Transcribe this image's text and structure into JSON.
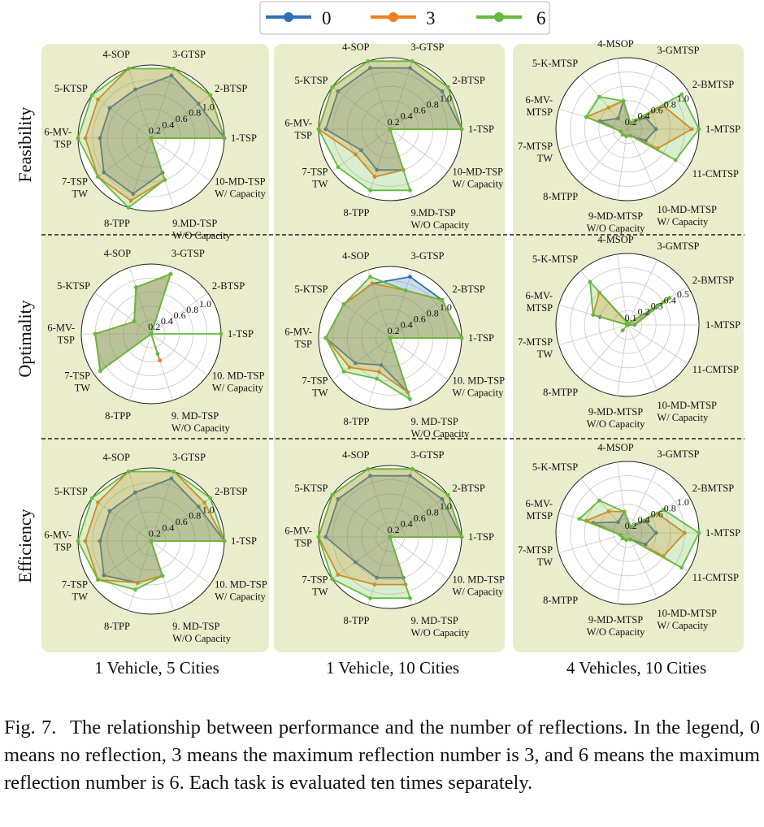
{
  "legend": {
    "colors": {
      "0": "#2f6fb6",
      "3": "#f07f1f",
      "6": "#66bb3c"
    }
  },
  "panel_background": "#eaedcb",
  "columns": [
    "1 Vehicle, 5 Cities",
    "1 Vehicle, 10 Cities",
    "4 Vehicles, 10 Cities"
  ],
  "rows": [
    "Feasibility",
    "Optimality",
    "Efficiency"
  ],
  "caption": {
    "label": "Fig. 7.",
    "text": "The relationship between performance and the number of reflections. In the legend, 0 means no reflection, 3 means the maximum reflection number is 3, and 6 means the maximum reflection number is 6. Each task is evaluated ten times separately."
  },
  "chart_data": [
    {
      "type": "radar",
      "row": "Feasibility",
      "column": "1 Vehicle, 5 Cities",
      "axes": [
        "1-TSP",
        "2-BTSP",
        "3-GTSP",
        "4-SOP",
        "5-KTSP",
        "6-MV-\nTSP",
        "7-TSP\nTW",
        "8-TPP",
        "9.MD-TSP\nW/O Capacity",
        "10-MD-TSP\nW/ Capacity"
      ],
      "rlim": [
        0,
        1.0
      ],
      "ticks": [
        "0.2",
        "0.4",
        "0.6",
        "0.8",
        "1.0"
      ],
      "series": [
        {
          "name": "0",
          "values": [
            1.0,
            0.8,
            0.9,
            0.7,
            0.7,
            0.7,
            0.8,
            0.8,
            0.5,
            0.0
          ]
        },
        {
          "name": "3",
          "values": [
            1.0,
            1.0,
            1.0,
            1.0,
            0.9,
            0.9,
            0.9,
            0.9,
            0.6,
            0.0
          ]
        },
        {
          "name": "6",
          "values": [
            1.0,
            1.0,
            1.0,
            1.0,
            1.0,
            1.0,
            0.9,
            1.0,
            0.6,
            0.0
          ]
        }
      ]
    },
    {
      "type": "radar",
      "row": "Feasibility",
      "column": "1 Vehicle, 10 Cities",
      "axes": [
        "1-TSP",
        "2-BTSP",
        "3-GTSP",
        "4-SOP",
        "5-KTSP",
        "6-MV-\nTSP",
        "7-TSP\nTW",
        "8-TPP",
        "9.MD-TSP\nW/O Capacity",
        "10-MD-TSP\nW/ Capacity"
      ],
      "rlim": [
        0,
        1.0
      ],
      "ticks": [
        "0.2",
        "0.4",
        "0.6",
        "0.8",
        "1.0"
      ],
      "series": [
        {
          "name": "0",
          "values": [
            1.0,
            0.9,
            0.9,
            0.9,
            0.9,
            0.9,
            0.5,
            0.6,
            0.6,
            0.0
          ]
        },
        {
          "name": "3",
          "values": [
            1.0,
            1.0,
            1.0,
            1.0,
            1.0,
            1.0,
            0.6,
            0.7,
            0.6,
            0.0
          ]
        },
        {
          "name": "6",
          "values": [
            1.0,
            1.0,
            1.0,
            1.0,
            1.0,
            1.0,
            0.9,
            0.9,
            0.9,
            0.0
          ]
        }
      ]
    },
    {
      "type": "radar",
      "row": "Feasibility",
      "column": "4 Vehicles, 10 Cities",
      "axes": [
        "1-MTSP",
        "2-BMTSP",
        "3-GMTSP",
        "4-MSOP",
        "5-K-MTSP",
        "6-MV-\nMTSP",
        "7-MTSP\nTW",
        "8-MTPP",
        "9-MD-MTSP\nW/O Capacity",
        "10-MD-MTSP\nW/ Capacity",
        "11-CMTSP"
      ],
      "rlim": [
        0,
        1.0
      ],
      "ticks": [
        "0.2",
        "0.4",
        "0.6",
        "0.8",
        "1.0"
      ],
      "series": [
        {
          "name": "0",
          "values": [
            0.4,
            0.3,
            0.1,
            0.4,
            0.2,
            0.4,
            0.1,
            0.1,
            0.1,
            0.1,
            0.3
          ]
        },
        {
          "name": "3",
          "values": [
            0.9,
            0.6,
            0.1,
            0.4,
            0.4,
            0.6,
            0.1,
            0.1,
            0.1,
            0.1,
            0.5
          ]
        },
        {
          "name": "6",
          "values": [
            1.0,
            0.9,
            0.1,
            0.4,
            0.6,
            0.6,
            0.1,
            0.1,
            0.1,
            0.1,
            0.8
          ]
        }
      ]
    },
    {
      "type": "radar",
      "row": "Optimality",
      "column": "1 Vehicle, 5 Cities",
      "axes": [
        "1-TSP",
        "2-BTSP",
        "3-GTSP",
        "4-SOP",
        "5-KTSP",
        "6-MV-\nTSP",
        "7-TSP\nTW",
        "8-TPP",
        "9. MD-TSP\nW/O Capacity",
        "10. MD-TSP\nW/ Capacity"
      ],
      "rlim": [
        0,
        1.0
      ],
      "ticks": [
        "0.2",
        "0.4",
        "0.6",
        "0.8",
        "1.0"
      ],
      "series": [
        {
          "name": "0",
          "values": [
            0.0,
            0.0,
            0.9,
            0.7,
            0.3,
            0.8,
            0.9,
            0.0,
            0.4,
            0.0
          ]
        },
        {
          "name": "3",
          "values": [
            0.0,
            0.0,
            0.9,
            0.7,
            0.3,
            0.8,
            0.9,
            0.0,
            0.4,
            0.0
          ]
        },
        {
          "name": "6",
          "values": [
            1.0,
            0.0,
            0.9,
            0.7,
            0.3,
            0.8,
            0.9,
            0.0,
            0.3,
            0.0
          ]
        }
      ]
    },
    {
      "type": "radar",
      "row": "Optimality",
      "column": "1 Vehicle, 10 Cities",
      "axes": [
        "1-TSP",
        "2-BTSP",
        "3-GTSP",
        "4-SOP",
        "5-KTSP",
        "6-MV-\nTSP",
        "7-TSP\nTW",
        "8-TPP",
        "9. MD-TSP\nW/O Capacity",
        "10. MD-TSP\nW/ Capacity"
      ],
      "rlim": [
        0,
        1.0
      ],
      "ticks": [
        "0.2",
        "0.4",
        "0.6",
        "0.8",
        "1.0"
      ],
      "series": [
        {
          "name": "0",
          "values": [
            1.0,
            0.9,
            0.9,
            0.8,
            0.8,
            0.9,
            0.6,
            0.4,
            0.8,
            0.0
          ]
        },
        {
          "name": "3",
          "values": [
            1.0,
            0.9,
            0.7,
            0.8,
            0.8,
            0.9,
            0.7,
            0.5,
            0.8,
            0.0
          ]
        },
        {
          "name": "6",
          "values": [
            1.0,
            0.9,
            0.7,
            0.9,
            0.8,
            0.9,
            0.8,
            0.6,
            0.9,
            0.0
          ]
        }
      ]
    },
    {
      "type": "radar",
      "row": "Optimality",
      "column": "4 Vehicles, 10 Cities",
      "axes": [
        "1-MTSP",
        "2-BMTSP",
        "3-GMTSP",
        "4-MSOP",
        "5-K-MTSP",
        "6-MV-\nMTSP",
        "7-MTSP\nTW",
        "8-MTPP",
        "9-MD-MTSP\nW/O Capacity",
        "10-MD-MTSP\nW/ Capacity",
        "11-CMTSP"
      ],
      "rlim": [
        0,
        0.5
      ],
      "ticks": [
        "0.1",
        "0.2",
        "0.3",
        "0.4",
        "0.5"
      ],
      "series": [
        {
          "name": "0",
          "values": [
            0.05,
            0.25,
            0.01,
            0.02,
            0.0,
            0.2,
            0.0,
            0.0,
            0.0,
            0.0,
            0.0
          ]
        },
        {
          "name": "3",
          "values": [
            0.05,
            0.3,
            0.01,
            0.02,
            0.3,
            0.25,
            0.0,
            0.0,
            0.0,
            0.0,
            0.0
          ]
        },
        {
          "name": "6",
          "values": [
            0.05,
            0.35,
            0.01,
            0.02,
            0.4,
            0.25,
            0.0,
            0.05,
            0.0,
            0.0,
            0.0
          ]
        }
      ]
    },
    {
      "type": "radar",
      "row": "Efficiency",
      "column": "1 Vehicle, 5 Cities",
      "axes": [
        "1-TSP",
        "2-BTSP",
        "3-GTSP",
        "4-SOP",
        "5-KTSP",
        "6-MV-\nTSP",
        "7-TSP\nTW",
        "8-TPP",
        "9. MD-TSP\nW/O Capacity",
        "10. MD-TSP\nW/ Capacity"
      ],
      "rlim": [
        0,
        1.0
      ],
      "ticks": [
        "0.2",
        "0.4",
        "0.6",
        "0.8",
        "1.0"
      ],
      "series": [
        {
          "name": "0",
          "values": [
            1.0,
            0.8,
            0.9,
            0.7,
            0.7,
            0.7,
            0.8,
            0.6,
            0.5,
            0.0
          ]
        },
        {
          "name": "3",
          "values": [
            1.0,
            0.9,
            1.0,
            1.0,
            0.9,
            0.9,
            0.9,
            0.6,
            0.5,
            0.0
          ]
        },
        {
          "name": "6",
          "values": [
            1.0,
            1.0,
            1.0,
            1.0,
            1.0,
            1.0,
            0.9,
            0.7,
            0.5,
            0.0
          ]
        }
      ]
    },
    {
      "type": "radar",
      "row": "Efficiency",
      "column": "1 Vehicle, 10 Cities",
      "axes": [
        "1-TSP",
        "2-BTSP",
        "3-GTSP",
        "4-SOP",
        "5-KTSP",
        "6-MV-\nTSP",
        "7-TSP\nTW",
        "8-TPP",
        "9. MD-TSP\nW/O Capacity",
        "10. MD-TSP\nW/ Capacity"
      ],
      "rlim": [
        0,
        1.0
      ],
      "ticks": [
        "0.2",
        "0.4",
        "0.6",
        "0.8",
        "1.0"
      ],
      "series": [
        {
          "name": "0",
          "values": [
            1.0,
            0.9,
            0.9,
            0.9,
            0.9,
            0.9,
            0.6,
            0.6,
            0.6,
            0.0
          ]
        },
        {
          "name": "3",
          "values": [
            1.0,
            1.0,
            1.0,
            1.0,
            1.0,
            1.0,
            0.9,
            0.7,
            0.7,
            0.0
          ]
        },
        {
          "name": "6",
          "values": [
            1.0,
            1.0,
            1.0,
            1.0,
            1.0,
            1.0,
            1.0,
            0.9,
            0.9,
            0.0
          ]
        }
      ]
    },
    {
      "type": "radar",
      "row": "Efficiency",
      "column": "4 Vehicles, 10 Cities",
      "axes": [
        "1-MTSP",
        "2-BMTSP",
        "3-GMTSP",
        "4-MSOP",
        "5-K-MTSP",
        "6-MV-\nMTSP",
        "7-MTSP\nTW",
        "8-MTPP",
        "9-MD-MTSP\nW/O Capacity",
        "10-MD-MTSP\nW/ Capacity",
        "11-CMTSP"
      ],
      "rlim": [
        0,
        1.0
      ],
      "ticks": [
        "0.2",
        "0.4",
        "0.6",
        "0.8",
        "1.0"
      ],
      "series": [
        {
          "name": "0",
          "values": [
            0.4,
            0.3,
            0.1,
            0.3,
            0.2,
            0.5,
            0.1,
            0.1,
            0.1,
            0.1,
            0.3
          ]
        },
        {
          "name": "3",
          "values": [
            0.8,
            0.5,
            0.1,
            0.3,
            0.4,
            0.6,
            0.1,
            0.1,
            0.1,
            0.1,
            0.6
          ]
        },
        {
          "name": "6",
          "values": [
            1.0,
            0.6,
            0.1,
            0.3,
            0.6,
            0.7,
            0.1,
            0.1,
            0.1,
            0.1,
            0.9
          ]
        }
      ]
    }
  ]
}
